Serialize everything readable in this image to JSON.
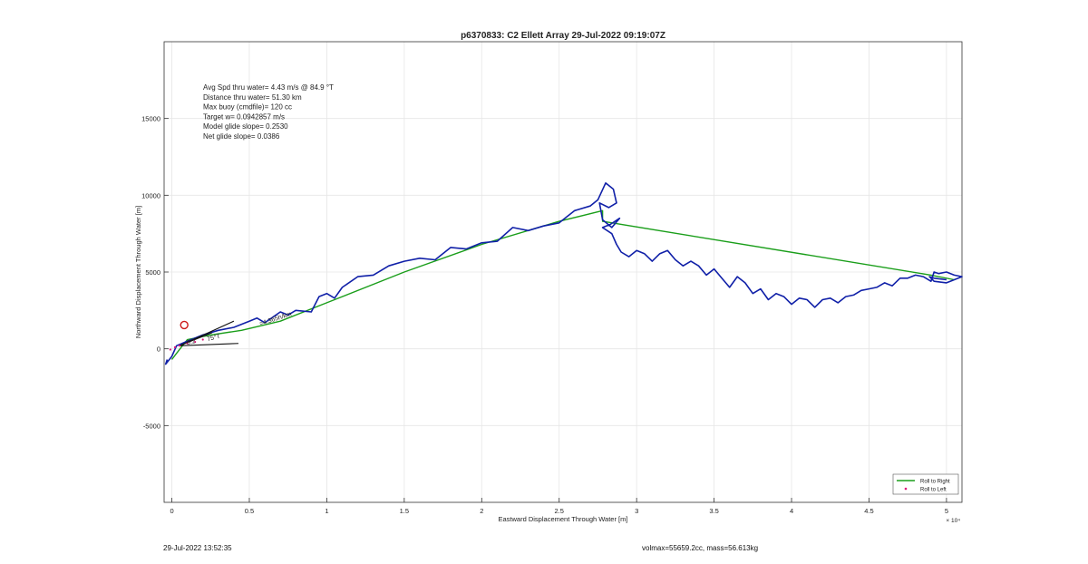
{
  "chart_data": {
    "type": "line",
    "title": "p6370833: C2 Ellett Array 29-Jul-2022 09:19:07Z",
    "xlabel": "Eastward Displacement Through Water [m]",
    "ylabel": "Northward Displacement Through Water [m]",
    "x_exponent_label": "× 10⁴",
    "xlim": [
      -500,
      51000
    ],
    "ylim": [
      -10000,
      20000
    ],
    "x_ticks": [
      {
        "value": 0,
        "label": "0"
      },
      {
        "value": 5000,
        "label": "0.5"
      },
      {
        "value": 10000,
        "label": "1"
      },
      {
        "value": 15000,
        "label": "1.5"
      },
      {
        "value": 20000,
        "label": "2"
      },
      {
        "value": 25000,
        "label": "2.5"
      },
      {
        "value": 30000,
        "label": "3"
      },
      {
        "value": 35000,
        "label": "3.5"
      },
      {
        "value": 40000,
        "label": "4"
      },
      {
        "value": 45000,
        "label": "4.5"
      },
      {
        "value": 50000,
        "label": "5"
      }
    ],
    "y_ticks": [
      {
        "value": -5000,
        "label": "-5000"
      },
      {
        "value": 0,
        "label": "0"
      },
      {
        "value": 5000,
        "label": "5000"
      },
      {
        "value": 10000,
        "label": "10000"
      },
      {
        "value": 15000,
        "label": "15000"
      }
    ],
    "grid": true,
    "legend_position": "bottom-right",
    "legend": [
      {
        "label": "Roll to Right",
        "color": "#1a9e1a",
        "marker": "line"
      },
      {
        "label": "Roll to Left",
        "color": "#e0127a",
        "marker": "dot"
      }
    ],
    "series": [
      {
        "name": "Roll to Right",
        "color": "#1a9e1a",
        "x": [
          0,
          300,
          1000,
          2500,
          4500,
          7000,
          10000,
          15000,
          20000,
          25000,
          27800,
          27800,
          49000,
          50500
        ],
        "y": [
          -700,
          -300,
          600,
          900,
          1200,
          1800,
          3000,
          5000,
          6800,
          8300,
          9000,
          8300,
          4800,
          4500
        ]
      },
      {
        "name": "Roll to Left",
        "color": "#e0127a",
        "x": [
          -100,
          200,
          500,
          1000,
          1500,
          2000
        ],
        "y": [
          -50,
          100,
          200,
          350,
          450,
          600
        ]
      },
      {
        "name": "",
        "color": "#1020a8",
        "x": [
          -300,
          -400,
          0,
          300,
          1000,
          2000,
          3000,
          4000,
          5000,
          5500,
          6000,
          7000,
          7500,
          8000,
          9000,
          9500,
          10000,
          10500,
          11000,
          12000,
          13000,
          14000,
          15000,
          16000,
          17000,
          18000,
          19000,
          20000,
          21000,
          22000,
          23000,
          24000,
          25000,
          26000,
          27000,
          27500,
          28000,
          28500,
          28700,
          28200,
          27600,
          27800,
          28400,
          28900,
          28300,
          27800,
          28400,
          28700,
          29000,
          29500,
          30000,
          30500,
          31000,
          31500,
          32000,
          32500,
          33000,
          33500,
          34000,
          34500,
          35000,
          35500,
          36000,
          36500,
          37000,
          37500,
          38000,
          38500,
          39000,
          39500,
          40000,
          40500,
          41000,
          41500,
          42000,
          42500,
          43000,
          43500,
          44000,
          44500,
          45000,
          45500,
          46000,
          46500,
          47000,
          47500,
          48000,
          48500,
          49000,
          49200,
          49500,
          50000,
          50500,
          51000,
          50500,
          50000,
          49200,
          48900,
          49200,
          50000
        ],
        "y": [
          -700,
          -1000,
          -500,
          200,
          500,
          900,
          1200,
          1400,
          1800,
          2000,
          1700,
          2400,
          2200,
          2500,
          2400,
          3400,
          3600,
          3300,
          4000,
          4700,
          4800,
          5400,
          5700,
          5900,
          5800,
          6600,
          6500,
          6900,
          7000,
          7900,
          7700,
          8000,
          8200,
          9000,
          9300,
          9700,
          10800,
          10400,
          9500,
          9200,
          9500,
          8400,
          7900,
          8500,
          8100,
          7900,
          7500,
          6800,
          6300,
          6000,
          6400,
          6200,
          5700,
          6200,
          6400,
          5800,
          5400,
          5700,
          5400,
          4800,
          5200,
          4600,
          4000,
          4700,
          4300,
          3600,
          3900,
          3200,
          3600,
          3400,
          2900,
          3300,
          3200,
          2700,
          3200,
          3300,
          3000,
          3400,
          3500,
          3800,
          3900,
          4000,
          4300,
          4100,
          4600,
          4600,
          4800,
          4700,
          4400,
          5000,
          4900,
          5000,
          4800,
          4700,
          4500,
          4300,
          4400,
          4700,
          4600,
          4500
        ]
      }
    ],
    "annotations_text": [
      "Avg Spd thru water=  4.43 m/s @  84.9 °T",
      "Distance thru water= 51.30 km",
      "Max buoy (cmdfile)= 120 cc",
      "Target w= 0.0942857 m/s",
      "Model glide slope= 0.2530",
      "Net glide slope= 0.0386"
    ],
    "path_labels": [
      "=4.365h/km",
      "75°T",
      "0.2"
    ]
  },
  "footer": {
    "left": "29-Jul-2022 13:52:35",
    "right": "volmax=55659.2cc, mass=56.613kg"
  }
}
